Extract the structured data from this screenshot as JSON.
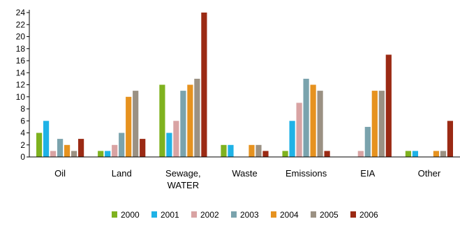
{
  "chart_data": {
    "type": "bar",
    "categories": [
      "Oil",
      "Land",
      "Sewage, WATER",
      "Waste",
      "Emissions",
      "EIA",
      "Other"
    ],
    "category_lines": [
      [
        "Oil"
      ],
      [
        "Land"
      ],
      [
        "Sewage,",
        "WATER"
      ],
      [
        "Waste"
      ],
      [
        "Emissions"
      ],
      [
        "EIA"
      ],
      [
        "Other"
      ]
    ],
    "series": [
      {
        "name": "2000",
        "color": "#7fb21f",
        "values": [
          4,
          1,
          12,
          2,
          1,
          0,
          1
        ]
      },
      {
        "name": "2001",
        "color": "#1fb2e6",
        "values": [
          6,
          1,
          4,
          2,
          6,
          0,
          1
        ]
      },
      {
        "name": "2002",
        "color": "#d9a3a3",
        "values": [
          1,
          2,
          6,
          0,
          9,
          1,
          0
        ]
      },
      {
        "name": "2003",
        "color": "#7aa3ad",
        "values": [
          3,
          4,
          11,
          0,
          13,
          5,
          0
        ]
      },
      {
        "name": "2004",
        "color": "#e6921f",
        "values": [
          2,
          10,
          12,
          2,
          12,
          11,
          1
        ]
      },
      {
        "name": "2005",
        "color": "#9b9183",
        "values": [
          1,
          11,
          13,
          2,
          11,
          11,
          1
        ]
      },
      {
        "name": "2006",
        "color": "#9b2a14",
        "values": [
          3,
          3,
          24,
          1,
          1,
          17,
          6
        ]
      }
    ],
    "ylim": [
      0,
      24
    ],
    "yticks": [
      0,
      2,
      4,
      6,
      8,
      10,
      12,
      14,
      16,
      18,
      20,
      22,
      24
    ],
    "title": "",
    "xlabel": "",
    "ylabel": "",
    "grid": false,
    "legend_position": "bottom"
  }
}
